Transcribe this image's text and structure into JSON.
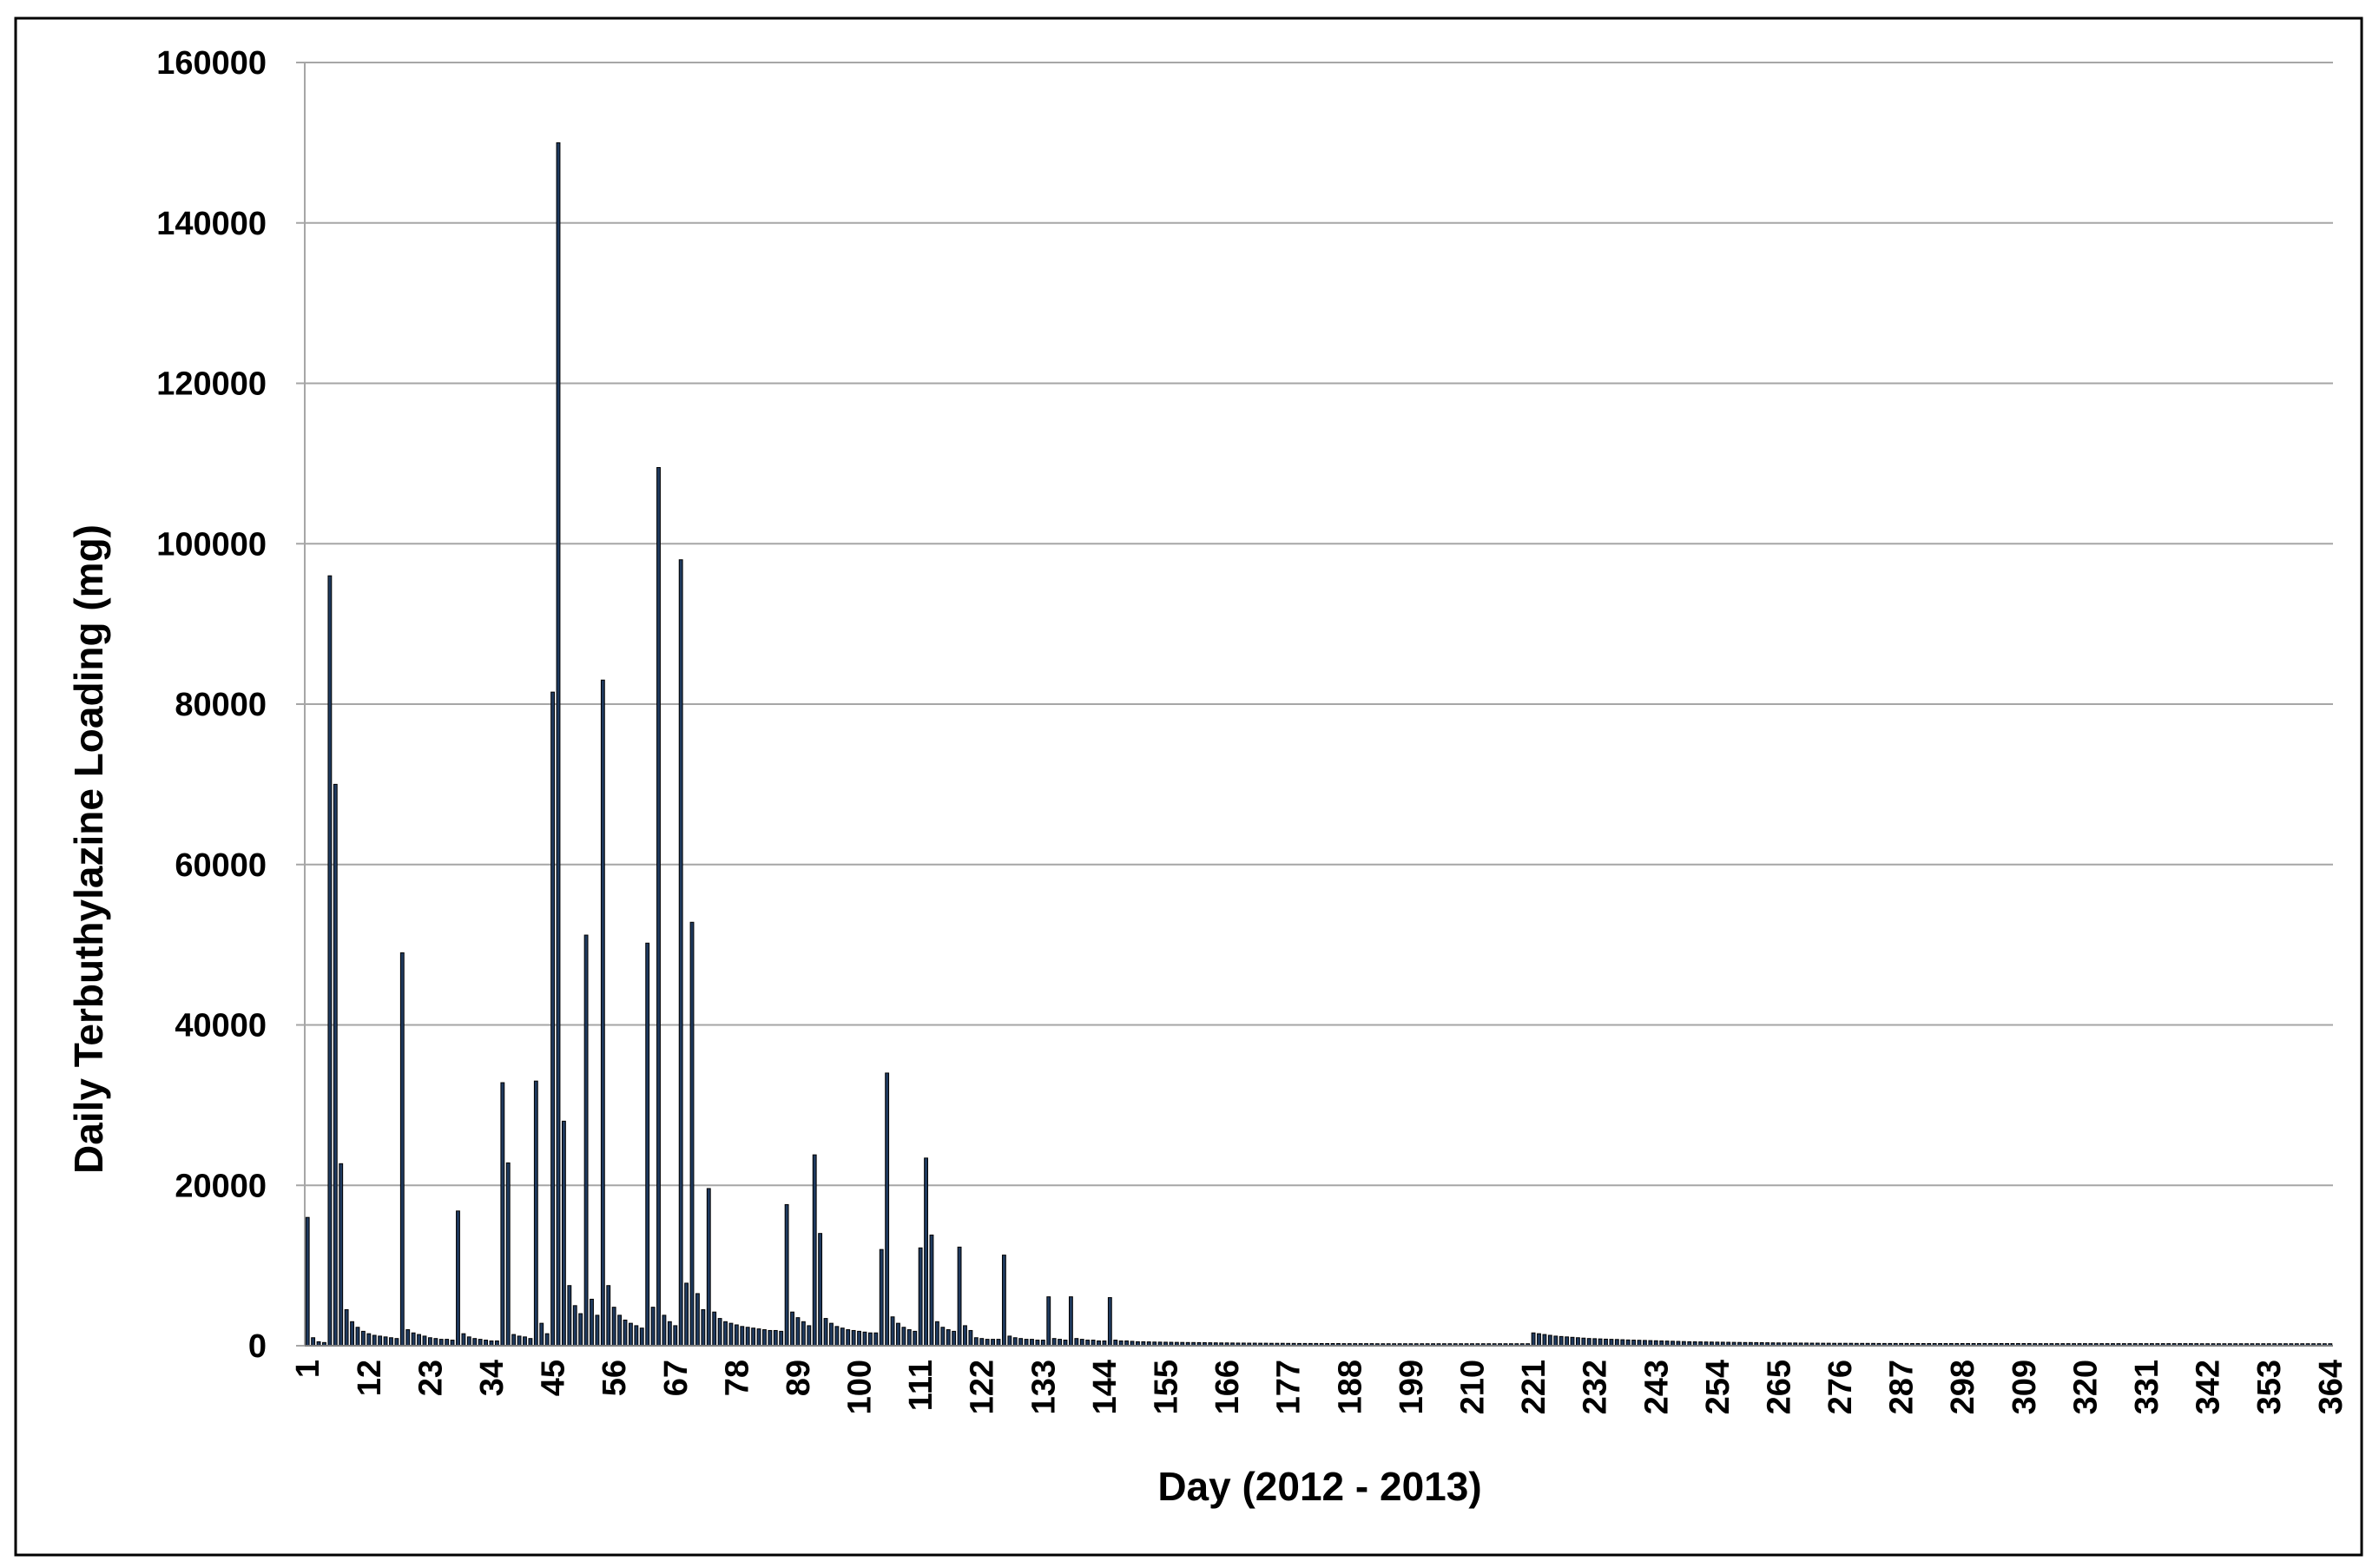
{
  "chart_data": {
    "type": "bar",
    "x_label": "Day (2012 - 2013)",
    "y_label": "Daily Terbuthylazine Loading (mg)",
    "color": "#1f3a5f",
    "grid": true,
    "ylim": [
      0,
      160000
    ],
    "yticks": [
      0,
      20000,
      40000,
      60000,
      80000,
      100000,
      120000,
      140000,
      160000
    ],
    "categories": [
      "1",
      null,
      null,
      null,
      null,
      null,
      null,
      null,
      null,
      null,
      null,
      "12",
      null,
      null,
      null,
      null,
      null,
      null,
      null,
      null,
      null,
      null,
      "23",
      null,
      null,
      null,
      null,
      null,
      null,
      null,
      null,
      null,
      null,
      "34",
      null,
      null,
      null,
      null,
      null,
      null,
      null,
      null,
      null,
      null,
      "45",
      null,
      null,
      null,
      null,
      null,
      null,
      null,
      null,
      null,
      null,
      "56",
      null,
      null,
      null,
      null,
      null,
      null,
      null,
      null,
      null,
      null,
      "67",
      null,
      null,
      null,
      null,
      null,
      null,
      null,
      null,
      null,
      null,
      "78",
      null,
      null,
      null,
      null,
      null,
      null,
      null,
      null,
      null,
      null,
      "89",
      null,
      null,
      null,
      null,
      null,
      null,
      null,
      null,
      null,
      null,
      "100",
      null,
      null,
      null,
      null,
      null,
      null,
      null,
      null,
      null,
      null,
      "111",
      null,
      null,
      null,
      null,
      null,
      null,
      null,
      null,
      null,
      null,
      "122",
      null,
      null,
      null,
      null,
      null,
      null,
      null,
      null,
      null,
      null,
      "133",
      null,
      null,
      null,
      null,
      null,
      null,
      null,
      null,
      null,
      null,
      "144",
      null,
      null,
      null,
      null,
      null,
      null,
      null,
      null,
      null,
      null,
      "155",
      null,
      null,
      null,
      null,
      null,
      null,
      null,
      null,
      null,
      null,
      "166",
      null,
      null,
      null,
      null,
      null,
      null,
      null,
      null,
      null,
      null,
      "177",
      null,
      null,
      null,
      null,
      null,
      null,
      null,
      null,
      null,
      null,
      "188",
      null,
      null,
      null,
      null,
      null,
      null,
      null,
      null,
      null,
      null,
      "199",
      null,
      null,
      null,
      null,
      null,
      null,
      null,
      null,
      null,
      null,
      "210",
      null,
      null,
      null,
      null,
      null,
      null,
      null,
      null,
      null,
      null,
      "221",
      null,
      null,
      null,
      null,
      null,
      null,
      null,
      null,
      null,
      null,
      "232",
      null,
      null,
      null,
      null,
      null,
      null,
      null,
      null,
      null,
      null,
      "243",
      null,
      null,
      null,
      null,
      null,
      null,
      null,
      null,
      null,
      null,
      "254",
      null,
      null,
      null,
      null,
      null,
      null,
      null,
      null,
      null,
      null,
      "265",
      null,
      null,
      null,
      null,
      null,
      null,
      null,
      null,
      null,
      null,
      "276",
      null,
      null,
      null,
      null,
      null,
      null,
      null,
      null,
      null,
      null,
      "287",
      null,
      null,
      null,
      null,
      null,
      null,
      null,
      null,
      null,
      null,
      "298",
      null,
      null,
      null,
      null,
      null,
      null,
      null,
      null,
      null,
      null,
      "309",
      null,
      null,
      null,
      null,
      null,
      null,
      null,
      null,
      null,
      null,
      "320",
      null,
      null,
      null,
      null,
      null,
      null,
      null,
      null,
      null,
      null,
      "331",
      null,
      null,
      null,
      null,
      null,
      null,
      null,
      null,
      null,
      null,
      "342",
      null,
      null,
      null,
      null,
      null,
      null,
      null,
      null,
      null,
      null,
      "353",
      null,
      null,
      null,
      null,
      null,
      null,
      null,
      null,
      null,
      null,
      "364"
    ],
    "values": [
      16000,
      1000,
      500,
      400,
      96000,
      70000,
      22700,
      4500,
      3000,
      2300,
      1800,
      1500,
      1300,
      1200,
      1100,
      1000,
      900,
      49000,
      2000,
      1600,
      1400,
      1200,
      1000,
      900,
      800,
      800,
      700,
      16800,
      1500,
      1100,
      900,
      800,
      700,
      600,
      600,
      32800,
      22800,
      1400,
      1200,
      1100,
      900,
      33000,
      2800,
      1500,
      81500,
      150000,
      28000,
      7500,
      5000,
      4000,
      51200,
      5800,
      3800,
      83000,
      7500,
      4800,
      3800,
      3200,
      2800,
      2500,
      2200,
      50200,
      4800,
      109500,
      3800,
      3000,
      2500,
      98000,
      7800,
      52800,
      6500,
      4500,
      19600,
      4200,
      3400,
      3000,
      2800,
      2600,
      2400,
      2300,
      2200,
      2100,
      2000,
      1900,
      1900,
      1800,
      17600,
      4200,
      3500,
      3000,
      2500,
      23800,
      14000,
      3400,
      2800,
      2400,
      2200,
      2000,
      1900,
      1800,
      1700,
      1600,
      1600,
      12000,
      34000,
      3600,
      2800,
      2300,
      2000,
      1800,
      12200,
      23400,
      13800,
      3000,
      2300,
      2000,
      1800,
      12300,
      2500,
      1900,
      1000,
      900,
      800,
      800,
      800,
      11300,
      1200,
      1000,
      900,
      800,
      800,
      700,
      700,
      6100,
      900,
      800,
      700,
      6100,
      900,
      800,
      700,
      700,
      600,
      600,
      6000,
      700,
      600,
      600,
      550,
      500,
      500,
      480,
      460,
      450,
      440,
      430,
      420,
      410,
      400,
      400,
      390,
      380,
      370,
      360,
      350,
      350,
      340,
      330,
      330,
      320,
      320,
      310,
      310,
      300,
      300,
      300,
      290,
      290,
      280,
      280,
      280,
      280,
      270,
      270,
      270,
      270,
      260,
      260,
      260,
      260,
      260,
      260,
      250,
      250,
      250,
      250,
      250,
      250,
      250,
      250,
      250,
      250,
      250,
      250,
      250,
      250,
      250,
      250,
      250,
      250,
      250,
      250,
      250,
      250,
      250,
      250,
      250,
      250,
      250,
      250,
      1600,
      1500,
      1400,
      1300,
      1200,
      1150,
      1100,
      1050,
      1000,
      950,
      900,
      880,
      850,
      820,
      800,
      780,
      750,
      720,
      700,
      680,
      660,
      640,
      620,
      600,
      580,
      560,
      540,
      520,
      500,
      490,
      480,
      470,
      460,
      450,
      440,
      430,
      420,
      410,
      400,
      400,
      390,
      380,
      370,
      360,
      350,
      350,
      340,
      340,
      330,
      330,
      320,
      320,
      310,
      310,
      300,
      300,
      300,
      300,
      290,
      290,
      290,
      290,
      280,
      280,
      280,
      280,
      280,
      280,
      270,
      270,
      270,
      270,
      270,
      270,
      270,
      270,
      270,
      270,
      270,
      270,
      270,
      270,
      270,
      270,
      270,
      270,
      270,
      270,
      270,
      270,
      260,
      260,
      260,
      260,
      260,
      260,
      260,
      260,
      260,
      260,
      260,
      260,
      260,
      260,
      260,
      260,
      260,
      260,
      260,
      260,
      260,
      260,
      260,
      260,
      260,
      260,
      260,
      260,
      260,
      260,
      250,
      250,
      250,
      250,
      250,
      250,
      250,
      250,
      250,
      250,
      250,
      250,
      250,
      250,
      250,
      250,
      250,
      250,
      250,
      250,
      250,
      250,
      250,
      250
    ]
  }
}
